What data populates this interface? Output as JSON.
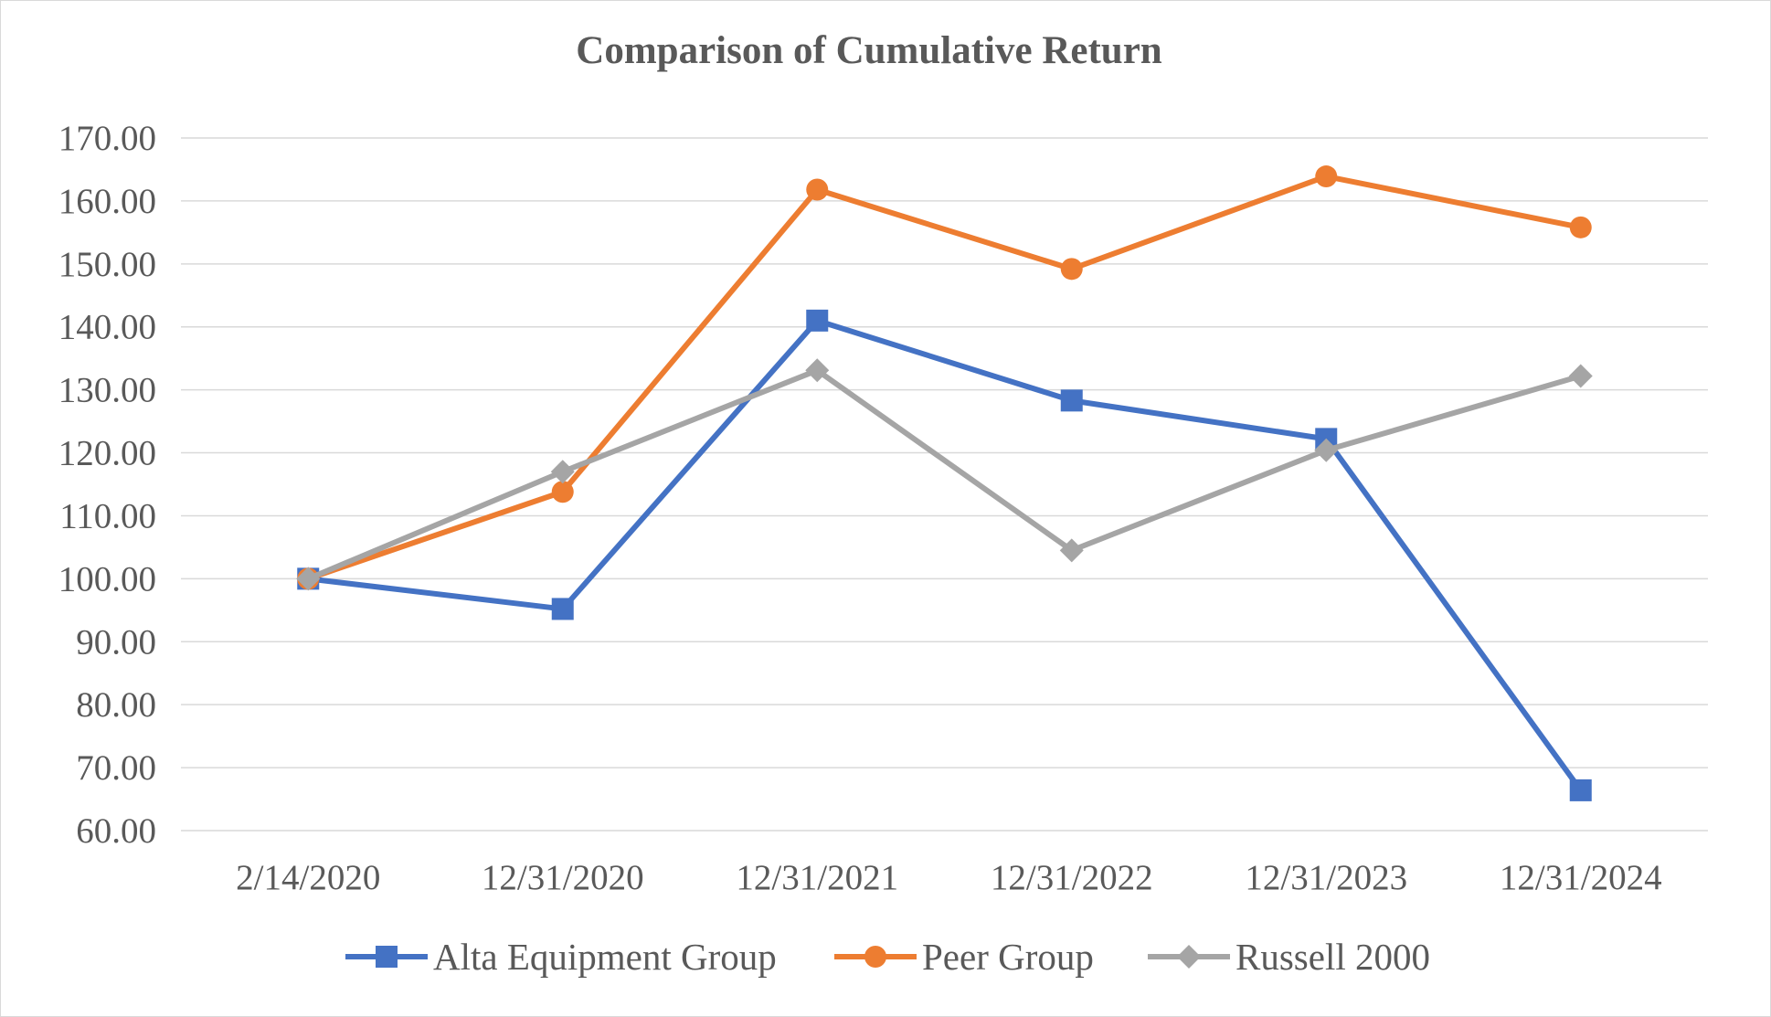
{
  "chart_data": {
    "type": "line",
    "title": "Comparison of Cumulative Return",
    "xlabel": "",
    "ylabel": "",
    "categories": [
      "2/14/2020",
      "12/31/2020",
      "12/31/2021",
      "12/31/2022",
      "12/31/2023",
      "12/31/2024"
    ],
    "ylim": [
      60,
      170
    ],
    "yticks": [
      "60.00",
      "70.00",
      "80.00",
      "90.00",
      "100.00",
      "110.00",
      "120.00",
      "130.00",
      "140.00",
      "150.00",
      "160.00",
      "170.00"
    ],
    "grid": true,
    "legend_position": "bottom",
    "series": [
      {
        "name": "Alta Equipment Group",
        "color": "#4472c4",
        "marker": "square",
        "values": [
          100.0,
          95.2,
          141.0,
          128.3,
          122.2,
          66.4
        ]
      },
      {
        "name": "Peer Group",
        "color": "#ed7d31",
        "marker": "circle",
        "values": [
          100.0,
          113.8,
          161.8,
          149.2,
          163.9,
          155.8
        ]
      },
      {
        "name": "Russell 2000",
        "color": "#a5a5a5",
        "marker": "diamond",
        "values": [
          100.0,
          117.0,
          133.1,
          104.5,
          120.4,
          132.2
        ]
      }
    ]
  }
}
